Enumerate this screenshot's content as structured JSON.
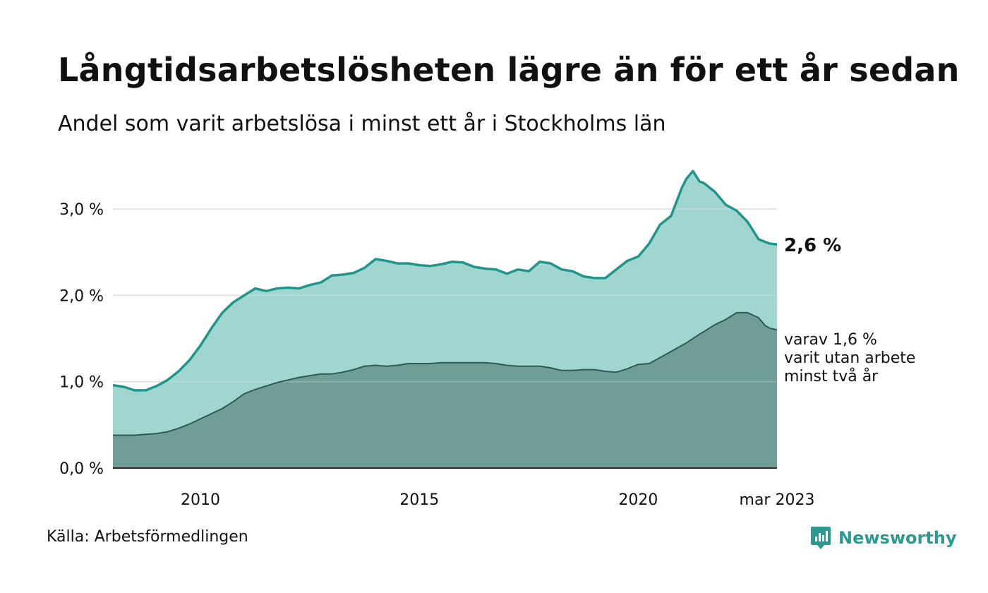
{
  "header": {
    "title": "Långtidsarbetslösheten lägre än för ett år sedan",
    "subtitle": "Andel som varit arbetslösa i minst ett år i Stockholms län"
  },
  "footer": {
    "source": "Källa: Arbetsförmedlingen",
    "brand": "Newsworthy"
  },
  "colors": {
    "total_fill": "#a1d5d0",
    "total_line": "#1f968b",
    "long_fill": "#709c96",
    "long_line": "#2e5b56",
    "grid": "#dedede",
    "brand": "#2b9b91"
  },
  "chart_data": {
    "type": "area",
    "x_unit": "decimal year",
    "xlim": [
      2008.0,
      2023.17
    ],
    "ylim": [
      0,
      3.5
    ],
    "y_ticks": [
      0,
      1,
      2,
      3
    ],
    "y_tick_labels": [
      "0,0 %",
      "1,0 %",
      "2,0 %",
      "3,0 %"
    ],
    "x_ticks": [
      2010,
      2015,
      2020,
      2023.17
    ],
    "x_tick_labels": [
      "2010",
      "2015",
      "2020",
      "mar 2023"
    ],
    "grid": true,
    "end_label_total": "2,6 %",
    "end_label_long": [
      "varav 1,6 %",
      "varit utan arbete",
      "minst två år"
    ],
    "x": [
      2008.0,
      2008.25,
      2008.5,
      2008.75,
      2009.0,
      2009.25,
      2009.5,
      2009.75,
      2010.0,
      2010.25,
      2010.5,
      2010.75,
      2011.0,
      2011.25,
      2011.5,
      2011.75,
      2012.0,
      2012.25,
      2012.5,
      2012.75,
      2013.0,
      2013.25,
      2013.5,
      2013.75,
      2014.0,
      2014.25,
      2014.5,
      2014.75,
      2015.0,
      2015.25,
      2015.5,
      2015.75,
      2016.0,
      2016.25,
      2016.5,
      2016.75,
      2017.0,
      2017.25,
      2017.5,
      2017.75,
      2018.0,
      2018.25,
      2018.5,
      2018.75,
      2019.0,
      2019.25,
      2019.5,
      2019.75,
      2020.0,
      2020.25,
      2020.5,
      2020.75,
      2021.0,
      2021.1,
      2021.25,
      2021.4,
      2021.5,
      2021.75,
      2022.0,
      2022.25,
      2022.5,
      2022.75,
      2022.9,
      2023.0,
      2023.17
    ],
    "series": [
      {
        "key": "total",
        "values": [
          0.96,
          0.94,
          0.9,
          0.9,
          0.95,
          1.02,
          1.12,
          1.25,
          1.42,
          1.62,
          1.8,
          1.92,
          2.0,
          2.08,
          2.05,
          2.08,
          2.09,
          2.08,
          2.12,
          2.15,
          2.23,
          2.24,
          2.26,
          2.32,
          2.42,
          2.4,
          2.37,
          2.37,
          2.35,
          2.34,
          2.36,
          2.39,
          2.38,
          2.33,
          2.31,
          2.3,
          2.25,
          2.3,
          2.28,
          2.39,
          2.37,
          2.3,
          2.28,
          2.22,
          2.2,
          2.2,
          2.3,
          2.4,
          2.45,
          2.6,
          2.82,
          2.92,
          3.25,
          3.35,
          3.44,
          3.32,
          3.3,
          3.2,
          3.05,
          2.98,
          2.85,
          2.65,
          2.62,
          2.6,
          2.59
        ]
      },
      {
        "key": "long",
        "values": [
          0.38,
          0.38,
          0.38,
          0.39,
          0.4,
          0.42,
          0.46,
          0.51,
          0.57,
          0.63,
          0.69,
          0.77,
          0.86,
          0.91,
          0.95,
          0.99,
          1.02,
          1.05,
          1.07,
          1.09,
          1.09,
          1.11,
          1.14,
          1.18,
          1.19,
          1.18,
          1.19,
          1.21,
          1.21,
          1.21,
          1.22,
          1.22,
          1.22,
          1.22,
          1.22,
          1.21,
          1.19,
          1.18,
          1.18,
          1.18,
          1.16,
          1.13,
          1.13,
          1.14,
          1.14,
          1.12,
          1.11,
          1.15,
          1.2,
          1.21,
          1.28,
          1.35,
          1.42,
          1.45,
          1.5,
          1.55,
          1.58,
          1.66,
          1.72,
          1.8,
          1.8,
          1.74,
          1.65,
          1.62,
          1.6
        ]
      }
    ]
  }
}
